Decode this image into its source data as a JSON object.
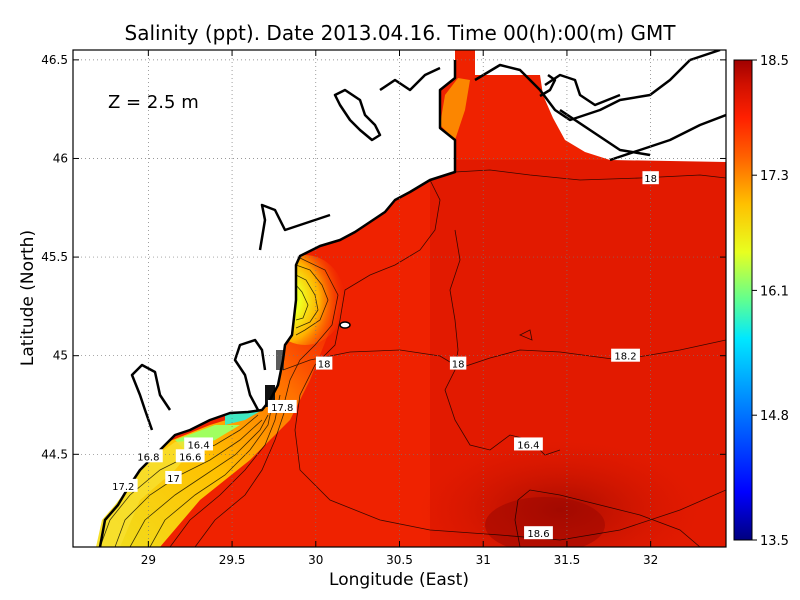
{
  "chart_data": {
    "type": "heatmap",
    "title": "Salinity (ppt). Date 2013.04.16. Time 00(h):00(m) GMT",
    "xlabel": "Longitude (East)",
    "ylabel": "Latitude (North)",
    "annotation": "Z = 2.5 m",
    "xlim": [
      28.55,
      32.45
    ],
    "ylim": [
      44.03,
      46.55
    ],
    "x_ticks": [
      29,
      29.5,
      30,
      30.5,
      31,
      31.5,
      32
    ],
    "x_tick_labels": [
      "29",
      "29.5",
      "30",
      "30.5",
      "31",
      "31.5",
      "32"
    ],
    "y_ticks": [
      44.5,
      45,
      45.5,
      46,
      46.5
    ],
    "y_tick_labels": [
      "44.5",
      "45",
      "45.5",
      "46",
      "46.5"
    ],
    "grid": true,
    "colorbar": {
      "min": 13.5,
      "max": 18.5,
      "ticks": [
        18.5,
        17.3,
        16.1,
        14.8,
        13.5
      ],
      "tick_labels": [
        "18.5",
        "17.3",
        "16.1",
        "14.8",
        "13.5"
      ],
      "colors": [
        "#00007f",
        "#0000ff",
        "#0080ff",
        "#00e0ff",
        "#60ff90",
        "#e0ff20",
        "#ffd000",
        "#ff7000",
        "#ff2a00",
        "#e01500",
        "#a00000"
      ]
    },
    "contour_labels": [
      {
        "text": "18",
        "lon": 32.0,
        "lat": 45.9
      },
      {
        "text": "18",
        "lon": 30.05,
        "lat": 44.96
      },
      {
        "text": "18",
        "lon": 30.85,
        "lat": 44.96
      },
      {
        "text": "18.2",
        "lon": 31.85,
        "lat": 45.0
      },
      {
        "text": "17.8",
        "lon": 29.8,
        "lat": 44.74
      },
      {
        "text": "16.4",
        "lon": 29.3,
        "lat": 44.55
      },
      {
        "text": "16.4",
        "lon": 31.27,
        "lat": 44.55
      },
      {
        "text": "16.6",
        "lon": 29.25,
        "lat": 44.49
      },
      {
        "text": "16.8",
        "lon": 29.0,
        "lat": 44.49
      },
      {
        "text": "17",
        "lon": 29.15,
        "lat": 44.38
      },
      {
        "text": "17.2",
        "lon": 28.85,
        "lat": 44.34
      },
      {
        "text": "18.6",
        "lon": 31.33,
        "lat": 44.1
      }
    ]
  }
}
